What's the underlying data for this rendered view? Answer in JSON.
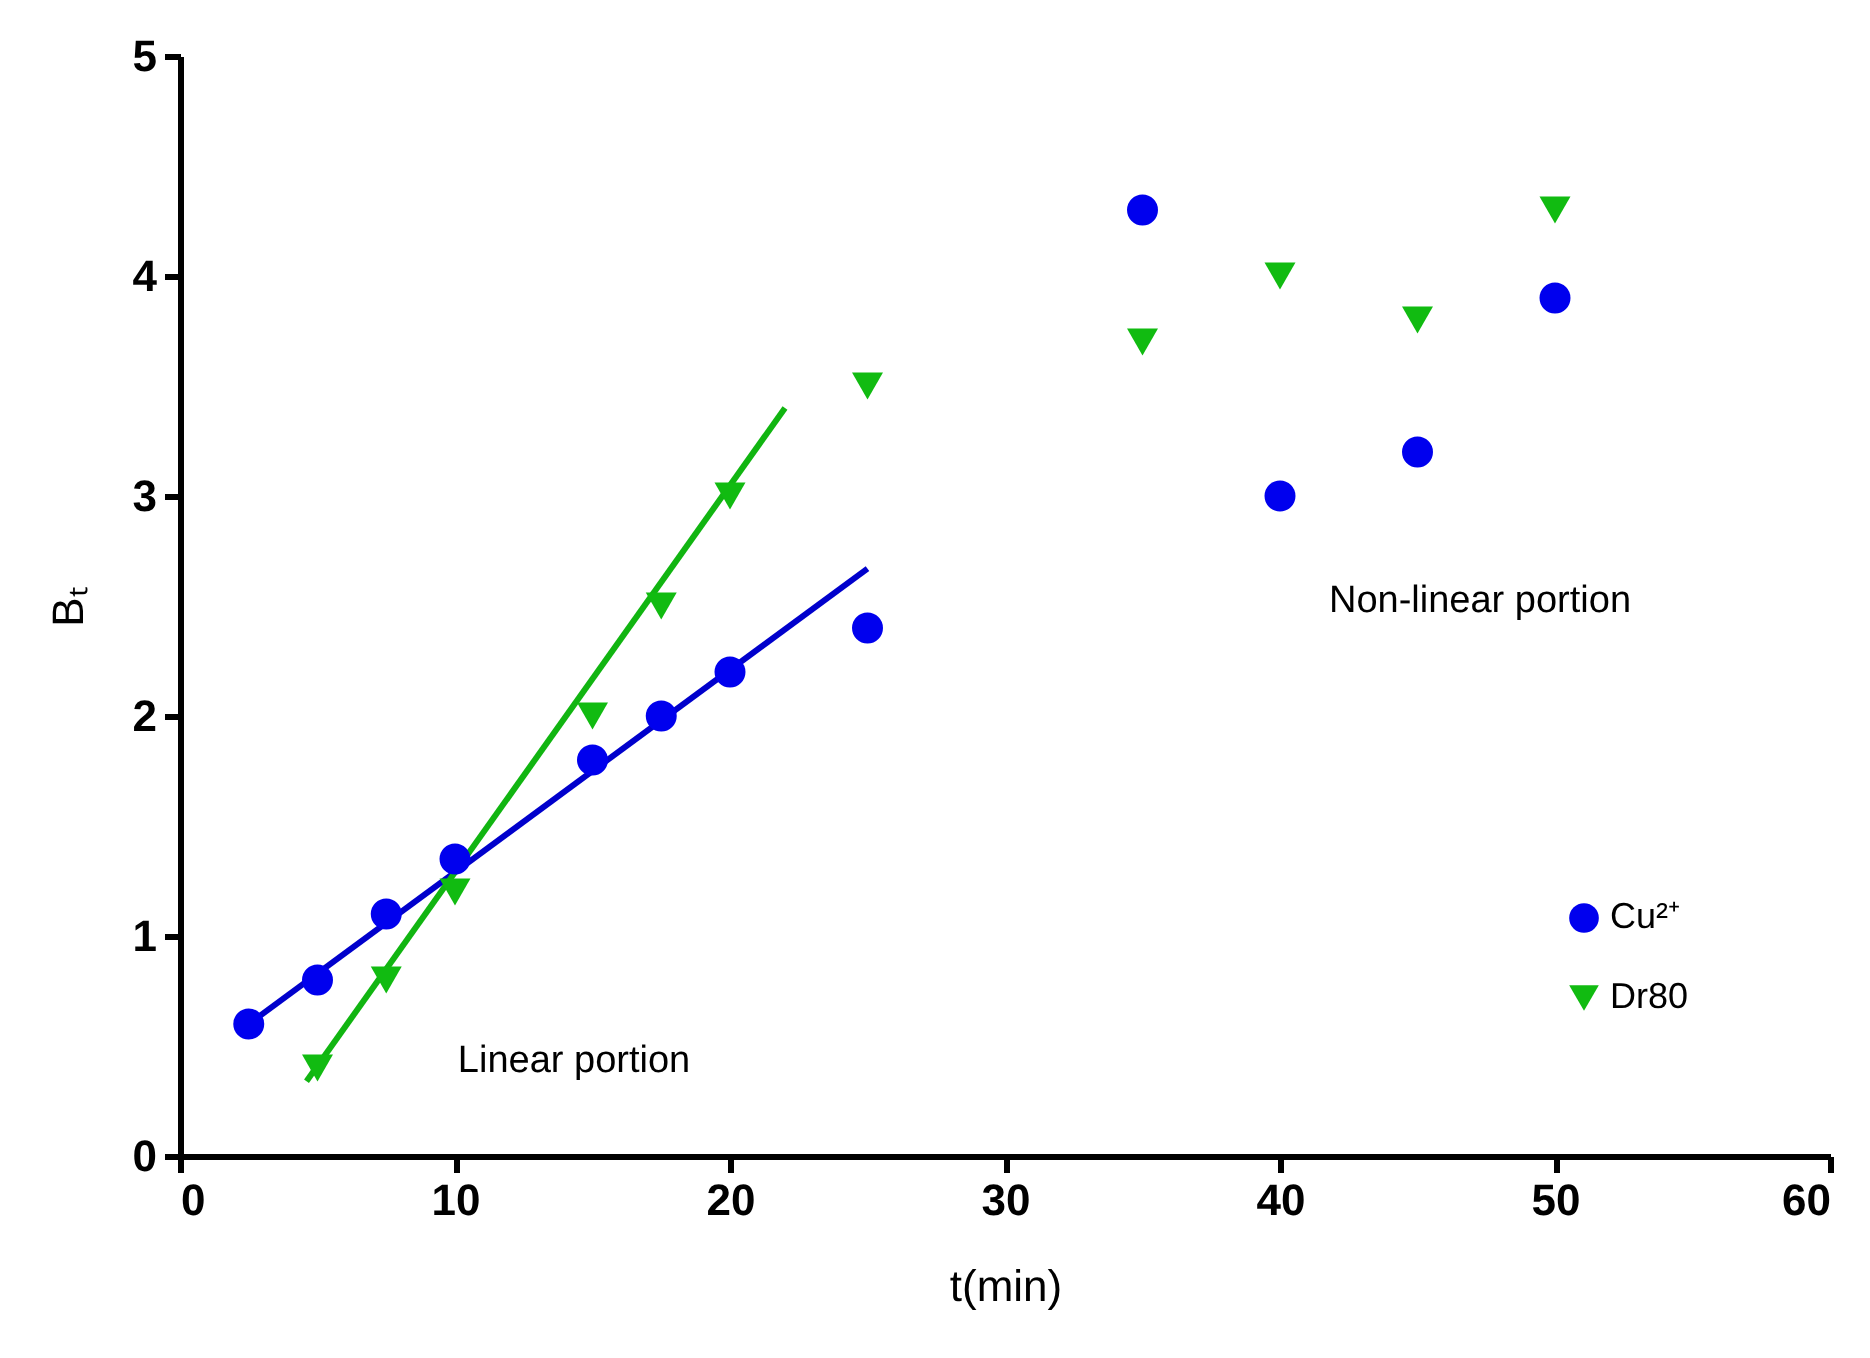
{
  "chart_data": {
    "type": "scatter",
    "xlabel": "t(min)",
    "ylabel": "Bₜ",
    "xlim": [
      0,
      60
    ],
    "xticks": [
      0,
      10,
      20,
      30,
      40,
      50,
      60
    ],
    "ylim": [
      0,
      5
    ],
    "yticks": [
      0,
      1,
      2,
      3,
      4,
      5
    ],
    "grid": false,
    "legend": "bottom right",
    "annotations": [
      "Linear portion",
      "Non-linear portion"
    ],
    "series": [
      {
        "type": "line",
        "color": "#0000cc",
        "x": [
          2.5,
          25
        ],
        "values": [
          0.6,
          2.67
        ]
      },
      {
        "type": "line",
        "color": "#11b511",
        "x": [
          4.6,
          22
        ],
        "values": [
          0.34,
          3.4
        ]
      },
      {
        "name": "Cu²⁺",
        "marker": "circle",
        "color": "#0000ee",
        "x": [
          2.5,
          5,
          7.5,
          10,
          15,
          17.5,
          20,
          25,
          35,
          40,
          45,
          50
        ],
        "values": [
          0.6,
          0.8,
          1.1,
          1.35,
          1.8,
          2.0,
          2.2,
          2.4,
          4.3,
          3.0,
          3.2,
          3.9
        ]
      },
      {
        "name": "Dr80",
        "marker": "triangle",
        "color": "#11bb11",
        "x": [
          5,
          7.5,
          10,
          15,
          17.5,
          20,
          25,
          35,
          40,
          45,
          50
        ],
        "values": [
          0.4,
          0.8,
          1.2,
          2.0,
          2.5,
          3.0,
          3.5,
          3.7,
          4.0,
          3.8,
          4.3
        ]
      }
    ]
  }
}
